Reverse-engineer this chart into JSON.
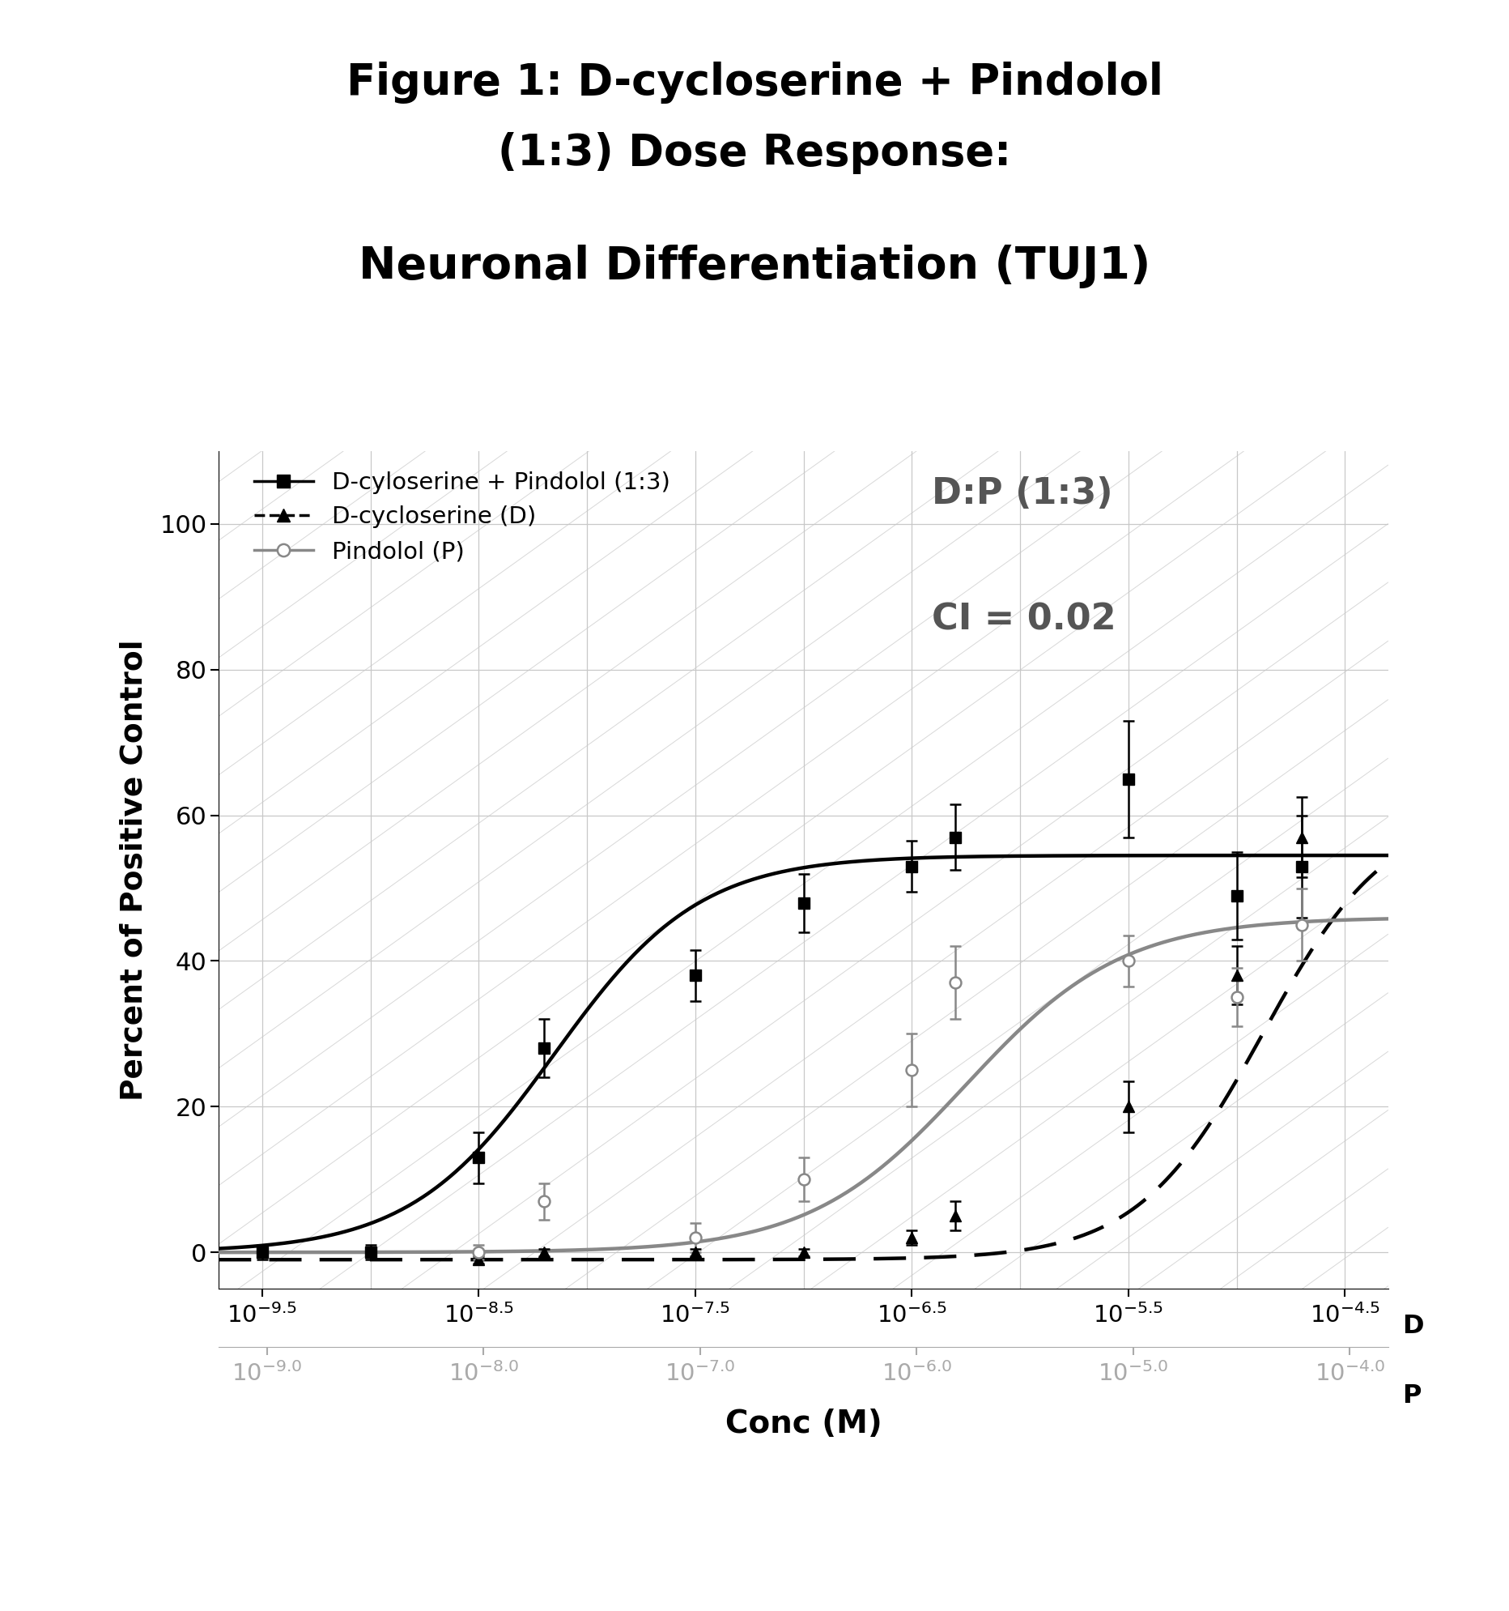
{
  "title_line1": "Figure 1: D-cycloserine + Pindolol",
  "title_line2": "(1:3) Dose Response:",
  "title_line3": "Neuronal Differentiation (TUJ1)",
  "ylabel": "Percent of Positive Control",
  "xlabel": "Conc (M)",
  "annotation_line1": "D:P (1:3)",
  "annotation_line2": "CI = 0.02",
  "combo_x": [
    -9.5,
    -9.0,
    -8.5,
    -8.2,
    -7.5,
    -7.0,
    -6.5,
    -6.3,
    -5.5,
    -5.0,
    -4.7
  ],
  "combo_y": [
    0.0,
    0.0,
    13.0,
    28.0,
    38.0,
    48.0,
    53.0,
    57.0,
    65.0,
    49.0,
    53.0
  ],
  "combo_yerr": [
    1.0,
    1.0,
    3.5,
    4.0,
    3.5,
    4.0,
    3.5,
    4.5,
    8.0,
    6.0,
    7.0
  ],
  "dcs_x": [
    -9.5,
    -9.0,
    -8.5,
    -8.2,
    -7.5,
    -7.0,
    -6.5,
    -6.3,
    -5.5,
    -5.0,
    -4.7
  ],
  "dcs_y": [
    0.0,
    0.0,
    -1.0,
    0.0,
    0.0,
    0.0,
    2.0,
    5.0,
    20.0,
    38.0,
    57.0
  ],
  "dcs_yerr": [
    0.5,
    0.5,
    0.5,
    0.5,
    0.5,
    0.5,
    1.0,
    2.0,
    3.5,
    4.0,
    5.5
  ],
  "pin_x": [
    -8.5,
    -8.2,
    -7.5,
    -7.0,
    -6.5,
    -6.3,
    -5.5,
    -5.0,
    -4.7
  ],
  "pin_y": [
    0.0,
    7.0,
    2.0,
    10.0,
    25.0,
    37.0,
    40.0,
    35.0,
    45.0
  ],
  "pin_yerr": [
    1.0,
    2.5,
    2.0,
    3.0,
    5.0,
    5.0,
    3.5,
    4.0,
    5.0
  ],
  "combo_color": "#000000",
  "dcs_color": "#000000",
  "pin_color": "#888888",
  "grid_color": "#c8c8c8",
  "hatch_color": "#d8d8d8",
  "bg_color": "#ffffff",
  "annotation_color": "#555555",
  "p_axis_color": "#aaaaaa"
}
